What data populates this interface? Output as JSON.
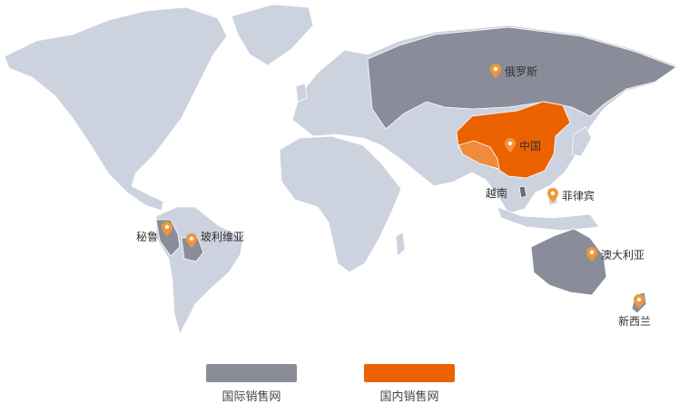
{
  "colors": {
    "land": "#cdd2df",
    "border": "#ffffff",
    "international": "#8a8d99",
    "domestic": "#ec6100",
    "domestic_light": "#f08a3c",
    "pin": "#f0963c"
  },
  "markers": [
    {
      "id": "russia",
      "label": "俄罗斯",
      "pin": true
    },
    {
      "id": "china",
      "label": "中国",
      "pin": true
    },
    {
      "id": "vietnam",
      "label": "越南",
      "pin": false
    },
    {
      "id": "philippines",
      "label": "菲律宾",
      "pin": true
    },
    {
      "id": "australia",
      "label": "澳大利亚",
      "pin": true
    },
    {
      "id": "new-zealand",
      "label": "新西兰",
      "pin": true
    },
    {
      "id": "peru",
      "label": "秘鲁",
      "pin": true
    },
    {
      "id": "bolivia",
      "label": "玻利维亚",
      "pin": true
    }
  ],
  "legend": {
    "international": "国际销售网",
    "domestic": "国内销售网"
  }
}
